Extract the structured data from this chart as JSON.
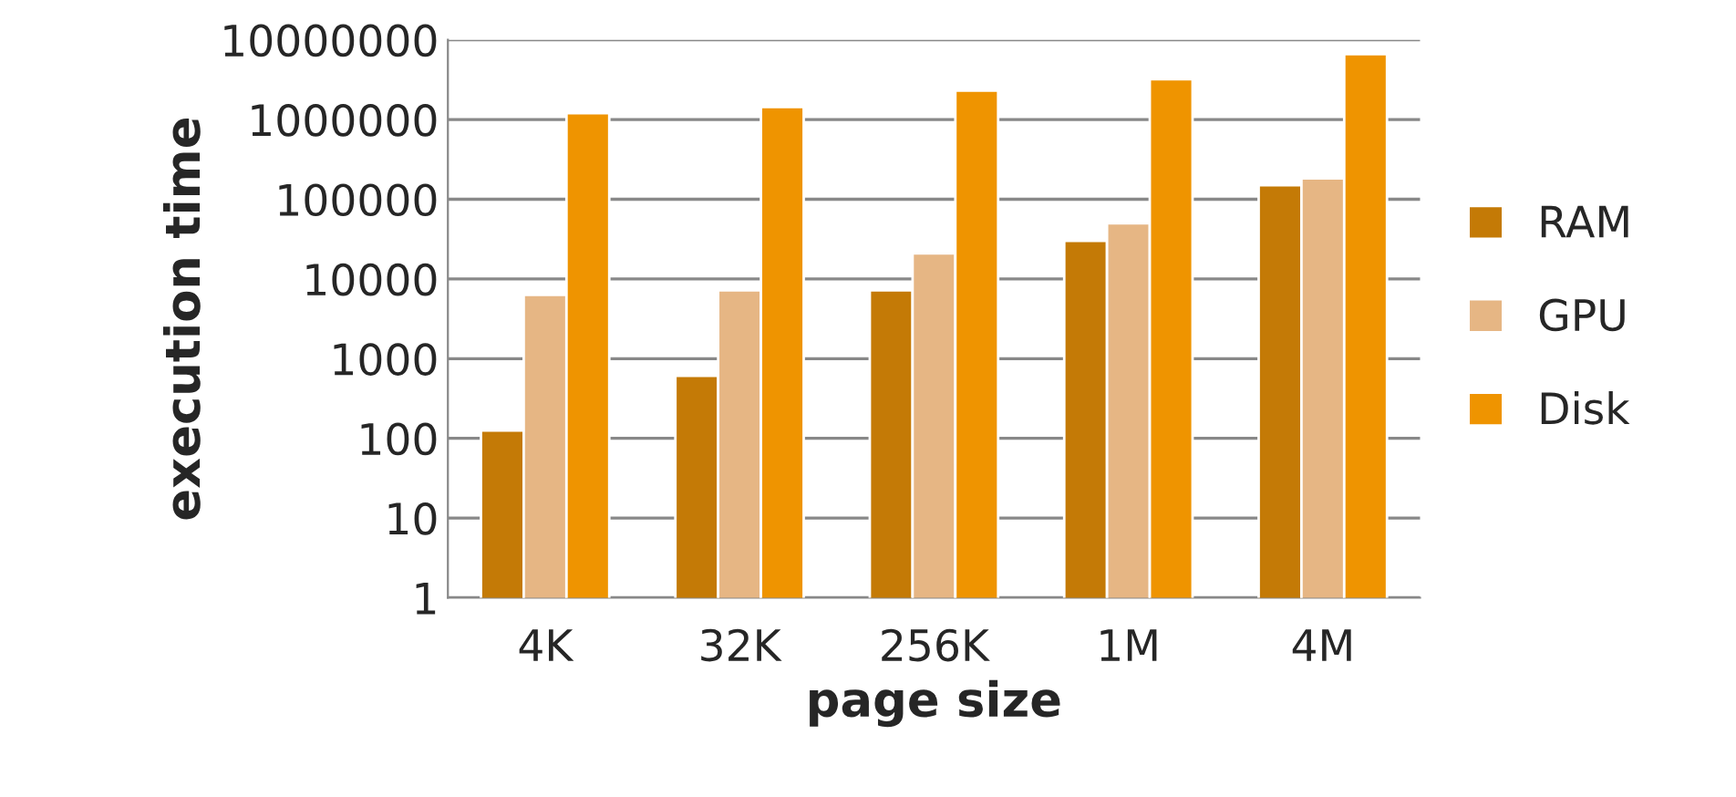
{
  "chart_data": {
    "type": "bar",
    "xlabel": "page size",
    "ylabel": "execution time",
    "categories": [
      "4K",
      "32K",
      "256K",
      "1M",
      "4M"
    ],
    "series": [
      {
        "name": "RAM",
        "color": "#c47a06",
        "values": [
          125,
          610,
          7200,
          30000,
          150000
        ]
      },
      {
        "name": "GPU",
        "color": "#e6b684",
        "values": [
          6300,
          7200,
          21000,
          50000,
          183000
        ]
      },
      {
        "name": "Disk",
        "color": "#ef9400",
        "values": [
          1200000,
          1440000,
          2300000,
          3200000,
          6600000
        ]
      }
    ],
    "log": true,
    "ylim": [
      1,
      10000000
    ],
    "yticks": [
      1,
      10,
      100,
      1000,
      10000,
      100000,
      1000000,
      10000000
    ],
    "grid": "y",
    "legend": "right"
  }
}
